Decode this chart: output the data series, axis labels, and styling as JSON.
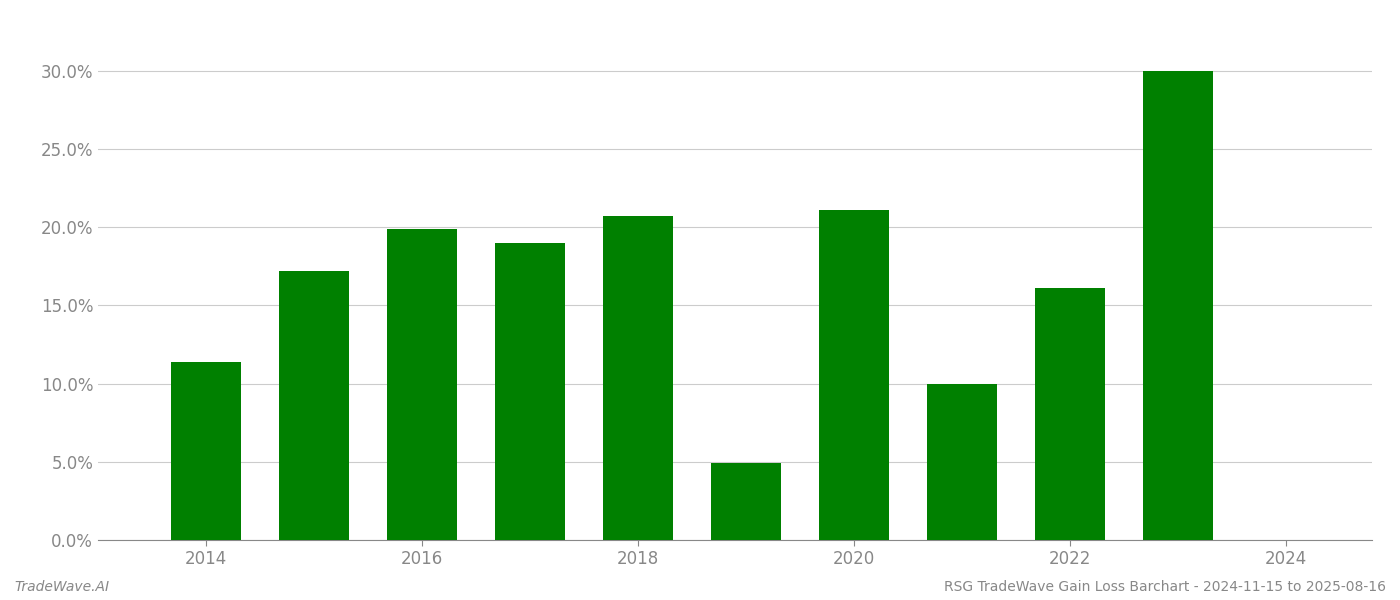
{
  "years": [
    2014,
    2015,
    2016,
    2017,
    2018,
    2019,
    2020,
    2021,
    2022,
    2023
  ],
  "values": [
    0.114,
    0.172,
    0.199,
    0.19,
    0.207,
    0.049,
    0.211,
    0.1,
    0.161,
    0.3
  ],
  "bar_color": "#008000",
  "background_color": "#ffffff",
  "grid_color": "#cccccc",
  "ylim": [
    0,
    0.33
  ],
  "yticks": [
    0.0,
    0.05,
    0.1,
    0.15,
    0.2,
    0.25,
    0.3
  ],
  "xticks": [
    2014,
    2016,
    2018,
    2020,
    2022,
    2024
  ],
  "tick_fontsize": 12,
  "tick_color": "#888888",
  "footer_left": "TradeWave.AI",
  "footer_right": "RSG TradeWave Gain Loss Barchart - 2024-11-15 to 2025-08-16",
  "footer_fontsize": 10,
  "bar_width": 0.65,
  "xlim": [
    2013.0,
    2024.8
  ]
}
